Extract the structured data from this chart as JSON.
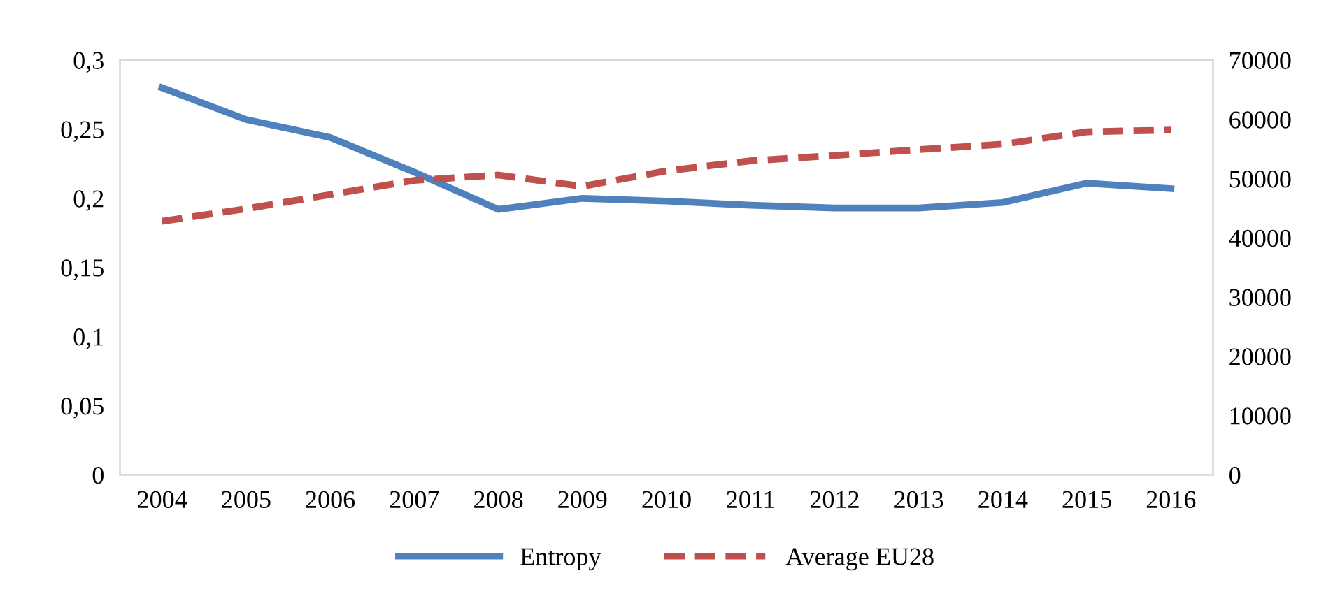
{
  "chart_data": {
    "type": "line",
    "categories": [
      "2004",
      "2005",
      "2006",
      "2007",
      "2008",
      "2009",
      "2010",
      "2011",
      "2012",
      "2013",
      "2014",
      "2015",
      "2016"
    ],
    "series": [
      {
        "name": "Entropy",
        "color": "#4f81bd",
        "line_style": "solid",
        "values": [
          0.28,
          0.257,
          0.244,
          0.219,
          0.192,
          0.2,
          0.198,
          0.195,
          0.193,
          0.193,
          0.197,
          0.211,
          0.207
        ]
      },
      {
        "name": "Average EU28",
        "color": "#c0504d",
        "line_style": "dashed",
        "axis": "y2",
        "values": [
          42800,
          44900,
          47300,
          49700,
          50600,
          48700,
          51300,
          53000,
          53900,
          54900,
          55800,
          57900,
          58200
        ]
      }
    ],
    "ylim": [
      0,
      0.3
    ],
    "yticks": [
      0,
      {
        "value": 0.05,
        "label": "0,05"
      },
      {
        "value": 0.1,
        "label": "0,1"
      },
      {
        "value": 0.15,
        "label": "0,15"
      },
      {
        "value": 0.2,
        "label": "0,2"
      },
      {
        "value": 0.25,
        "label": "0,25"
      },
      {
        "value": 0.3,
        "label": "0,3"
      }
    ],
    "y2lim": [
      0,
      70000
    ],
    "y2ticks": [
      0,
      10000,
      20000,
      30000,
      40000,
      50000,
      60000,
      70000
    ],
    "legend": "bottom",
    "grid": false,
    "marker": "none"
  }
}
